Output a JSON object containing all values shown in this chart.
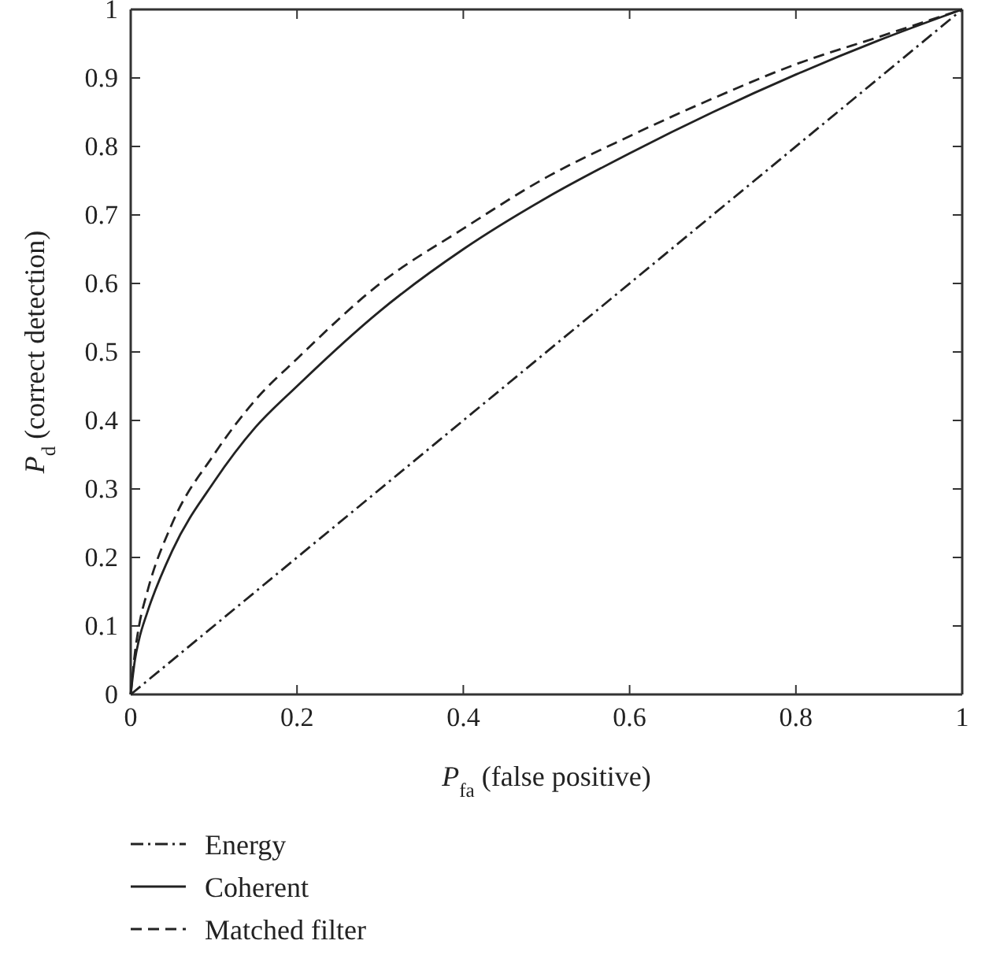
{
  "chart_data": {
    "type": "line",
    "xlabel": "P$_{fa}$ (false positive)",
    "ylabel": "P$_{d}$ (correct detection)",
    "xlim": [
      0,
      1
    ],
    "ylim": [
      0,
      1
    ],
    "xticks": [
      0,
      0.2,
      0.4,
      0.6,
      0.8,
      1
    ],
    "yticks": [
      0,
      0.1,
      0.2,
      0.3,
      0.4,
      0.5,
      0.6,
      0.7,
      0.8,
      0.9,
      1
    ],
    "grid": false,
    "legend": "bottom",
    "marker": "none",
    "series": [
      {
        "name": "Energy",
        "color": "#222222",
        "line_style": "dashdot",
        "x": [
          0,
          1
        ],
        "values": [
          0,
          1
        ]
      },
      {
        "name": "Coherent",
        "color": "#222222",
        "line_style": "solid",
        "x": [
          0,
          0.005,
          0.01,
          0.02,
          0.05,
          0.1,
          0.15,
          0.2,
          0.3,
          0.4,
          0.5,
          0.6,
          0.7,
          0.8,
          0.9,
          1
        ],
        "values": [
          0,
          0.05,
          0.08,
          0.12,
          0.21,
          0.31,
          0.39,
          0.45,
          0.56,
          0.65,
          0.725,
          0.79,
          0.85,
          0.905,
          0.955,
          1
        ]
      },
      {
        "name": "Matched filter",
        "color": "#222222",
        "line_style": "dashed",
        "x": [
          0,
          0.005,
          0.01,
          0.02,
          0.05,
          0.1,
          0.15,
          0.2,
          0.3,
          0.4,
          0.5,
          0.6,
          0.7,
          0.8,
          0.9,
          1
        ],
        "values": [
          0,
          0.06,
          0.1,
          0.15,
          0.25,
          0.35,
          0.43,
          0.49,
          0.6,
          0.68,
          0.755,
          0.815,
          0.87,
          0.92,
          0.96,
          1
        ]
      }
    ]
  }
}
